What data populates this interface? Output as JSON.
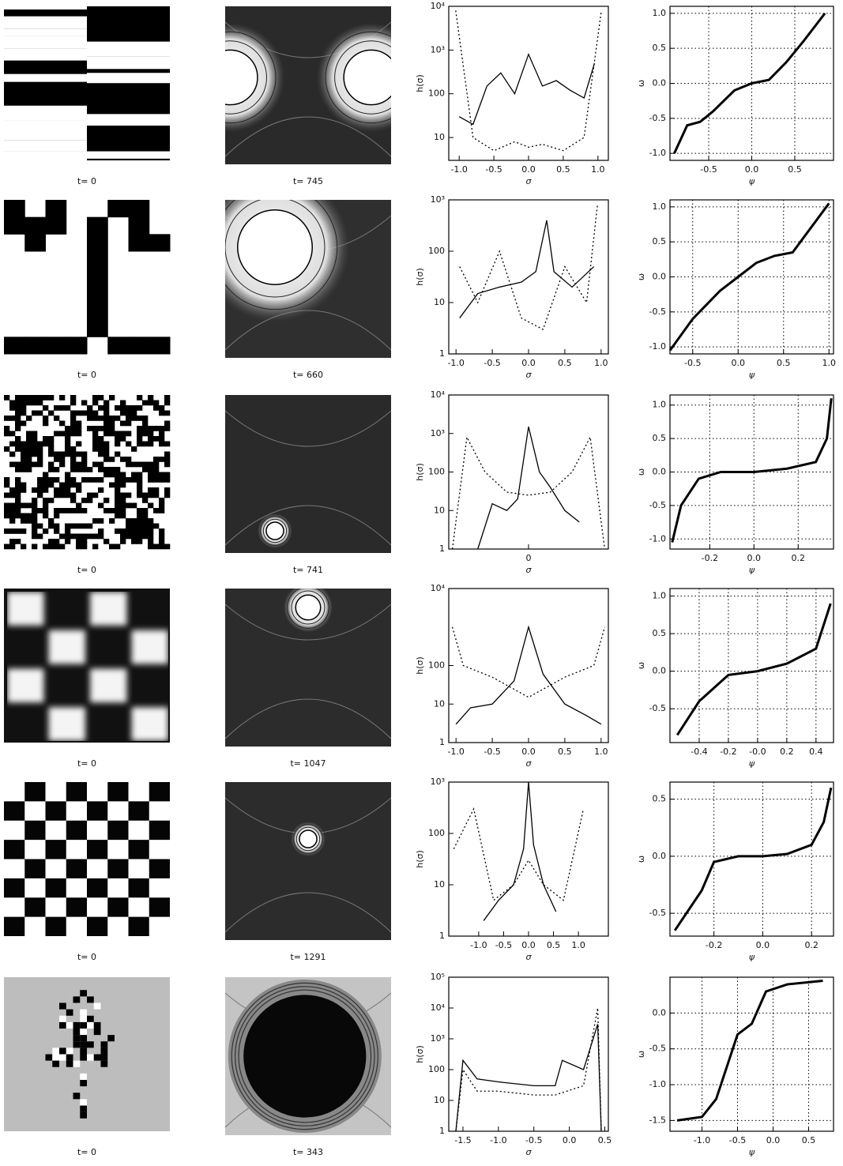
{
  "rows": [
    {
      "initial_caption": "t= 0",
      "final_caption": "t= 745",
      "histogram": {
        "type": "line",
        "ylabel": "h(σ)",
        "xlabel": "σ",
        "log_y": true,
        "color": "#000000",
        "xlim": [
          -1.15,
          1.15
        ],
        "ylim": [
          3,
          10000
        ],
        "xticks": [
          {
            "value": -1,
            "label": "-1.0"
          },
          -0.5,
          {
            "value": 0,
            "label": "0.0"
          },
          0.5,
          {
            "value": 1,
            "label": "1.0"
          }
        ],
        "yticks": [
          10,
          100,
          {
            "value": 1000,
            "label": "10³"
          },
          {
            "value": 10000,
            "label": "10⁴"
          }
        ],
        "series": [
          {
            "style": "solid",
            "x": [
              -1.0,
              -0.8,
              -0.6,
              -0.4,
              -0.2,
              0,
              0.2,
              0.4,
              0.6,
              0.8,
              0.95
            ],
            "values": [
              30,
              20,
              150,
              300,
              100,
              800,
              150,
              200,
              120,
              80,
              500
            ]
          },
          {
            "style": "dotted",
            "x": [
              -1.05,
              -0.8,
              -0.5,
              -0.2,
              0,
              0.2,
              0.5,
              0.8,
              1.05
            ],
            "values": [
              8000,
              10,
              5,
              8,
              6,
              7,
              5,
              10,
              8000
            ]
          }
        ]
      },
      "phase": {
        "type": "scatter",
        "ylabel": "ω",
        "xlabel": "ψ",
        "grid": true,
        "color": "#000000",
        "xlim": [
          -0.95,
          0.95
        ],
        "ylim": [
          -1.1,
          1.1
        ],
        "xticks": [
          -0.5,
          {
            "value": 0,
            "label": "0.0"
          },
          0.5
        ],
        "yticks": [
          {
            "value": -1,
            "label": "-1.0"
          },
          -0.5,
          {
            "value": 0,
            "label": "0.0"
          },
          0.5,
          {
            "value": 1,
            "label": "1.0"
          }
        ],
        "x": [
          -0.9,
          -0.75,
          -0.6,
          -0.45,
          -0.2,
          0,
          0.2,
          0.4,
          0.6,
          0.85
        ],
        "values": [
          -1.0,
          -0.6,
          -0.55,
          -0.4,
          -0.1,
          0,
          0.05,
          0.3,
          0.6,
          1.0
        ]
      }
    },
    {
      "initial_caption": "t= 0",
      "final_caption": "t= 660",
      "histogram": {
        "type": "line",
        "ylabel": "h(σ)",
        "xlabel": "σ",
        "log_y": true,
        "color": "#000000",
        "xlim": [
          -1.1,
          1.1
        ],
        "ylim": [
          1,
          1000
        ],
        "xticks": [
          {
            "value": -1,
            "label": "-1.0"
          },
          -0.5,
          {
            "value": 0,
            "label": "0.0"
          },
          0.5,
          {
            "value": 1,
            "label": "1.0"
          }
        ],
        "yticks": [
          1,
          10,
          100,
          {
            "value": 1000,
            "label": "10³"
          }
        ],
        "series": [
          {
            "style": "solid",
            "x": [
              -0.95,
              -0.7,
              -0.4,
              -0.1,
              0.1,
              0.25,
              0.35,
              0.6,
              0.9
            ],
            "values": [
              5,
              15,
              20,
              25,
              40,
              400,
              40,
              20,
              50
            ]
          },
          {
            "style": "dotted",
            "x": [
              -0.95,
              -0.7,
              -0.4,
              -0.1,
              0.2,
              0.5,
              0.8,
              0.95
            ],
            "values": [
              50,
              10,
              100,
              5,
              3,
              50,
              10,
              800
            ]
          }
        ]
      },
      "phase": {
        "type": "scatter",
        "ylabel": "ω",
        "xlabel": "ψ",
        "grid": true,
        "color": "#000000",
        "xlim": [
          -0.75,
          1.05
        ],
        "ylim": [
          -1.1,
          1.1
        ],
        "xticks": [
          -0.5,
          {
            "value": 0,
            "label": "0.0"
          },
          0.5,
          {
            "value": 1,
            "label": "1.0"
          }
        ],
        "yticks": [
          {
            "value": -1,
            "label": "-1.0"
          },
          -0.5,
          {
            "value": 0,
            "label": "0.0"
          },
          0.5,
          {
            "value": 1,
            "label": "1.0"
          }
        ],
        "x": [
          -0.75,
          -0.5,
          -0.2,
          0,
          0.2,
          0.4,
          0.6,
          0.8,
          1.0
        ],
        "values": [
          -1.05,
          -0.6,
          -0.2,
          0,
          0.2,
          0.3,
          0.35,
          0.7,
          1.05
        ]
      }
    },
    {
      "initial_caption": "t= 0",
      "final_caption": "t= 741",
      "histogram": {
        "type": "line",
        "ylabel": "h(σ)",
        "xlabel": "σ",
        "log_y": true,
        "color": "#000000",
        "xlim": [
          -1.1,
          1.1
        ],
        "ylim": [
          1,
          10000
        ],
        "xticks": [
          0
        ],
        "yticks": [
          1,
          10,
          100,
          {
            "value": 1000,
            "label": "10³"
          },
          {
            "value": 10000,
            "label": "10⁴"
          }
        ],
        "series": [
          {
            "style": "solid",
            "x": [
              -0.7,
              -0.5,
              -0.3,
              -0.15,
              0,
              0.15,
              0.3,
              0.5,
              0.7
            ],
            "values": [
              1,
              15,
              10,
              20,
              1500,
              100,
              40,
              10,
              5
            ]
          },
          {
            "style": "dotted",
            "x": [
              -1.05,
              -0.85,
              -0.6,
              -0.3,
              0,
              0.3,
              0.6,
              0.85,
              1.05
            ],
            "values": [
              1,
              800,
              100,
              30,
              25,
              30,
              100,
              800,
              1
            ]
          }
        ]
      },
      "phase": {
        "type": "scatter",
        "ylabel": "ω",
        "xlabel": "ψ",
        "grid": true,
        "color": "#000000",
        "xlim": [
          -0.38,
          0.36
        ],
        "ylim": [
          -1.15,
          1.15
        ],
        "xticks": [
          -0.2,
          {
            "value": 0,
            "label": "0.0"
          },
          0.2
        ],
        "yticks": [
          {
            "value": -1,
            "label": "-1.0"
          },
          -0.5,
          {
            "value": 0,
            "label": "0.0"
          },
          0.5,
          {
            "value": 1,
            "label": "1.0"
          }
        ],
        "x": [
          -0.37,
          -0.33,
          -0.25,
          -0.15,
          0,
          0.15,
          0.28,
          0.33,
          0.35
        ],
        "values": [
          -1.05,
          -0.5,
          -0.1,
          0,
          0,
          0.05,
          0.15,
          0.5,
          1.1
        ]
      }
    },
    {
      "initial_caption": "t= 0",
      "final_caption": "t= 1047",
      "histogram": {
        "type": "line",
        "ylabel": "h(σ)",
        "xlabel": "σ",
        "log_y": true,
        "color": "#000000",
        "xlim": [
          -1.1,
          1.1
        ],
        "ylim": [
          1,
          10000
        ],
        "xticks": [
          {
            "value": -1,
            "label": "-1.0"
          },
          -0.5,
          {
            "value": 0,
            "label": "0.0"
          },
          0.5,
          {
            "value": 1,
            "label": "1.0"
          }
        ],
        "yticks": [
          1,
          10,
          100,
          {
            "value": 10000,
            "label": "10⁴"
          }
        ],
        "series": [
          {
            "style": "solid",
            "x": [
              -1,
              -0.8,
              -0.5,
              -0.2,
              0,
              0.2,
              0.5,
              0.8,
              1
            ],
            "values": [
              3,
              8,
              10,
              40,
              1000,
              60,
              10,
              5,
              3
            ]
          },
          {
            "style": "dotted",
            "x": [
              -1.05,
              -0.9,
              -0.5,
              0,
              0.5,
              0.9,
              1.05
            ],
            "values": [
              1000,
              100,
              50,
              15,
              50,
              100,
              1000
            ]
          }
        ]
      },
      "phase": {
        "type": "scatter",
        "ylabel": "ω",
        "xlabel": "ψ",
        "grid": true,
        "color": "#000000",
        "xlim": [
          -0.6,
          0.52
        ],
        "ylim": [
          -0.95,
          1.1
        ],
        "xticks": [
          -0.4,
          -0.2,
          {
            "value": 0,
            "label": "-0.0"
          },
          0.2,
          0.4
        ],
        "yticks": [
          -0.5,
          {
            "value": 0,
            "label": "0.0"
          },
          0.5,
          {
            "value": 1,
            "label": "1.0"
          }
        ],
        "x": [
          -0.55,
          -0.4,
          -0.2,
          0,
          0.2,
          0.3,
          0.4,
          0.5
        ],
        "values": [
          -0.85,
          -0.4,
          -0.05,
          0,
          0.1,
          0.2,
          0.3,
          0.9
        ]
      }
    },
    {
      "initial_caption": "t= 0",
      "final_caption": "t= 1291",
      "histogram": {
        "type": "line",
        "ylabel": "h(σ)",
        "xlabel": "σ",
        "log_y": true,
        "color": "#000000",
        "xlim": [
          -1.6,
          1.6
        ],
        "ylim": [
          1,
          1000
        ],
        "xticks": [
          {
            "value": -1,
            "label": "-1.0"
          },
          -0.5,
          {
            "value": 0,
            "label": "0.0"
          },
          0.5,
          {
            "value": 1,
            "label": "1.0"
          }
        ],
        "yticks": [
          1,
          10,
          100,
          {
            "value": 1000,
            "label": "10³"
          }
        ],
        "series": [
          {
            "style": "solid",
            "x": [
              -0.9,
              -0.6,
              -0.3,
              -0.1,
              0,
              0.1,
              0.3,
              0.55
            ],
            "values": [
              2,
              5,
              10,
              50,
              1000,
              60,
              10,
              3
            ]
          },
          {
            "style": "dotted",
            "x": [
              -1.5,
              -1.1,
              -0.7,
              -0.3,
              0,
              0.3,
              0.7,
              1.1
            ],
            "values": [
              50,
              300,
              5,
              10,
              30,
              10,
              5,
              300
            ]
          }
        ]
      },
      "phase": {
        "type": "scatter",
        "ylabel": "ω",
        "xlabel": "ψ",
        "grid": true,
        "color": "#000000",
        "xlim": [
          -0.38,
          0.29
        ],
        "ylim": [
          -0.7,
          0.65
        ],
        "xticks": [
          -0.2,
          {
            "value": 0,
            "label": "0.0"
          },
          0.2
        ],
        "yticks": [
          -0.5,
          {
            "value": 0,
            "label": "0.0"
          },
          0.5
        ],
        "x": [
          -0.36,
          -0.25,
          -0.2,
          -0.1,
          0,
          0.1,
          0.2,
          0.25,
          0.28
        ],
        "values": [
          -0.65,
          -0.3,
          -0.05,
          0,
          0,
          0.02,
          0.1,
          0.3,
          0.6
        ]
      }
    },
    {
      "initial_caption": "t= 0",
      "final_caption": "t= 343",
      "histogram": {
        "type": "line",
        "ylabel": "h(σ)",
        "xlabel": "σ",
        "log_y": true,
        "color": "#000000",
        "xlim": [
          -1.7,
          0.55
        ],
        "ylim": [
          1,
          100000
        ],
        "xticks": [
          -1.5,
          {
            "value": -1,
            "label": "-1.0"
          },
          -0.5,
          {
            "value": 0,
            "label": "0.0"
          },
          0.5
        ],
        "yticks": [
          1,
          10,
          100,
          {
            "value": 1000,
            "label": "10³"
          },
          {
            "value": 10000,
            "label": "10⁴"
          },
          {
            "value": 100000,
            "label": "10⁵"
          }
        ],
        "series": [
          {
            "style": "solid",
            "x": [
              -1.6,
              -1.5,
              -1.3,
              -1.0,
              -0.5,
              -0.2,
              -0.1,
              0.2,
              0.4,
              0.45
            ],
            "values": [
              1,
              200,
              50,
              40,
              30,
              30,
              200,
              100,
              3000,
              1
            ]
          },
          {
            "style": "dotted",
            "x": [
              -1.6,
              -1.5,
              -1.3,
              -1.0,
              -0.5,
              -0.2,
              0.2,
              0.4,
              0.45
            ],
            "values": [
              1,
              100,
              20,
              20,
              15,
              15,
              30,
              10000,
              1
            ]
          }
        ]
      },
      "phase": {
        "type": "scatter",
        "ylabel": "ω",
        "xlabel": "ψ",
        "grid": true,
        "color": "#000000",
        "xlim": [
          -1.45,
          0.85
        ],
        "ylim": [
          -1.65,
          0.5
        ],
        "xticks": [
          {
            "value": -1,
            "label": "-1.0"
          },
          -0.5,
          {
            "value": 0,
            "label": "0.0"
          },
          0.5
        ],
        "yticks": [
          -1.5,
          {
            "value": -1,
            "label": "-1.0"
          },
          -0.5,
          {
            "value": 0,
            "label": "0.0"
          }
        ],
        "x": [
          -1.35,
          -1.0,
          -0.8,
          -0.5,
          -0.3,
          -0.1,
          0.2,
          0.7
        ],
        "values": [
          -1.5,
          -1.45,
          -1.2,
          -0.3,
          -0.15,
          0.3,
          0.4,
          0.45
        ]
      }
    }
  ]
}
